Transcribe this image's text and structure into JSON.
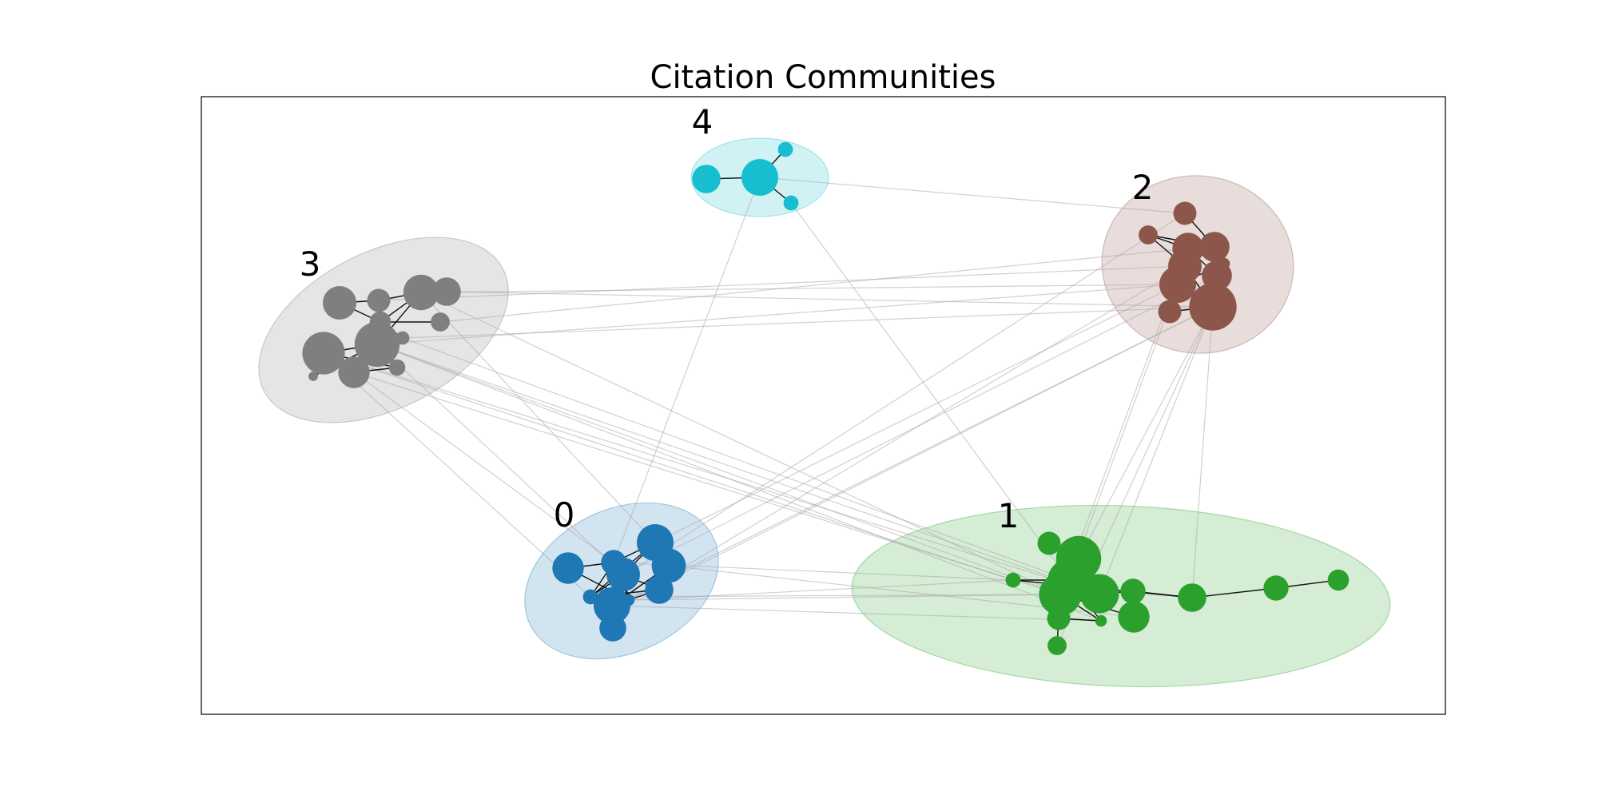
{
  "chart_data": {
    "type": "network",
    "title": "Citation Communities",
    "communities": [
      {
        "id": "0",
        "label": "0",
        "color": "#1f77b4",
        "nodes": [
          {
            "id": "c0n0",
            "size": 30
          },
          {
            "id": "c0n1",
            "size": 22
          },
          {
            "id": "c0n2",
            "size": 25
          },
          {
            "id": "c0n3",
            "size": 14
          },
          {
            "id": "c0n4",
            "size": 18
          },
          {
            "id": "c0n5",
            "size": 16
          },
          {
            "id": "c0n6",
            "size": 30
          },
          {
            "id": "c0n7",
            "size": 26
          },
          {
            "id": "c0n8",
            "size": 5
          },
          {
            "id": "c0n9",
            "size": 3
          }
        ],
        "edges": [
          [
            "c0n3",
            "c0n0"
          ],
          [
            "c0n3",
            "c0n2"
          ],
          [
            "c0n3",
            "c0n1"
          ],
          [
            "c0n3",
            "c0n8"
          ],
          [
            "c0n2",
            "c0n0"
          ],
          [
            "c0n2",
            "c0n4"
          ],
          [
            "c0n2",
            "c0n5"
          ],
          [
            "c0n2",
            "c0n8"
          ],
          [
            "c0n0",
            "c0n8"
          ],
          [
            "c0n8",
            "c0n4"
          ],
          [
            "c0n8",
            "c0n5"
          ],
          [
            "c0n1",
            "c0n9"
          ],
          [
            "c0n9",
            "c0n6"
          ],
          [
            "c0n9",
            "c0n5"
          ],
          [
            "c0n6",
            "c0n7"
          ],
          [
            "c0n6",
            "c0n4"
          ],
          [
            "c0n9",
            "c0n2"
          ],
          [
            "c0n9",
            "c0n3"
          ]
        ]
      },
      {
        "id": "1",
        "label": "1",
        "color": "#2ca02c",
        "nodes": [
          {
            "id": "c1n0",
            "size": 45
          },
          {
            "id": "c1n1",
            "size": 40
          },
          {
            "id": "c1n2",
            "size": 34
          },
          {
            "id": "c1n3",
            "size": 40
          },
          {
            "id": "c1n4",
            "size": 14
          },
          {
            "id": "c1n5",
            "size": 12
          },
          {
            "id": "c1n6",
            "size": 18
          },
          {
            "id": "c1n7",
            "size": 8
          },
          {
            "id": "c1n8",
            "size": 12
          },
          {
            "id": "c1n9",
            "size": 22
          },
          {
            "id": "c1n10",
            "size": 14
          },
          {
            "id": "c1n11",
            "size": 10
          },
          {
            "id": "c1n12",
            "size": 5
          },
          {
            "id": "c1n13",
            "size": 3
          }
        ],
        "edges": [
          [
            "c1n5",
            "c1n0"
          ],
          [
            "c1n0",
            "c1n1"
          ],
          [
            "c1n1",
            "c1n3"
          ],
          [
            "c1n3",
            "c1n2"
          ],
          [
            "c1n2",
            "c1n4"
          ],
          [
            "c1n4",
            "c1n6"
          ],
          [
            "c1n6",
            "c1n10"
          ],
          [
            "c1n10",
            "c1n11"
          ],
          [
            "c1n12",
            "c1n1"
          ],
          [
            "c1n12",
            "c1n6"
          ],
          [
            "c1n3",
            "c1n8"
          ],
          [
            "c1n8",
            "c1n7"
          ],
          [
            "c1n8",
            "c1n13"
          ],
          [
            "c1n13",
            "c1n3"
          ],
          [
            "c1n13",
            "c1n1"
          ],
          [
            "c1n3",
            "c1n9"
          ],
          [
            "c1n2",
            "c1n3"
          ],
          [
            "c1n0",
            "c1n2"
          ],
          [
            "c1n1",
            "c1n2"
          ]
        ]
      },
      {
        "id": "2",
        "label": "2",
        "color": "#8c564b",
        "nodes": [
          {
            "id": "c2n0",
            "size": 50
          },
          {
            "id": "c2n1",
            "size": 30
          },
          {
            "id": "c2n2",
            "size": 25
          },
          {
            "id": "c2n3",
            "size": 22
          },
          {
            "id": "c2n4",
            "size": 20
          },
          {
            "id": "c2n5",
            "size": 20
          },
          {
            "id": "c2n6",
            "size": 12
          },
          {
            "id": "c2n7",
            "size": 12
          },
          {
            "id": "c2n8",
            "size": 8
          },
          {
            "id": "c2n9",
            "size": 3
          }
        ],
        "edges": [
          [
            "c2n6",
            "c2n4"
          ],
          [
            "c2n8",
            "c2n4"
          ],
          [
            "c2n8",
            "c2n3"
          ],
          [
            "c2n8",
            "c2n2"
          ],
          [
            "c2n4",
            "c2n3"
          ],
          [
            "c2n3",
            "c2n2"
          ],
          [
            "c2n3",
            "c2n5"
          ],
          [
            "c2n2",
            "c2n0"
          ],
          [
            "c2n5",
            "c2n0"
          ],
          [
            "c2n5",
            "c2n9"
          ],
          [
            "c2n9",
            "c2n1"
          ],
          [
            "c2n2",
            "c2n7"
          ],
          [
            "c2n7",
            "c2n0"
          ],
          [
            "c2n3",
            "c2n9"
          ]
        ]
      },
      {
        "id": "3",
        "label": "3",
        "color": "#7f7f7f",
        "nodes": [
          {
            "id": "c3n0",
            "size": 45
          },
          {
            "id": "c3n1",
            "size": 40
          },
          {
            "id": "c3n2",
            "size": 28
          },
          {
            "id": "c3n3",
            "size": 25
          },
          {
            "id": "c3n4",
            "size": 22
          },
          {
            "id": "c3n5",
            "size": 18
          },
          {
            "id": "c3n6",
            "size": 12
          },
          {
            "id": "c3n7",
            "size": 10
          },
          {
            "id": "c3n8",
            "size": 8
          },
          {
            "id": "c3n9",
            "size": 6
          },
          {
            "id": "c3n10",
            "size": 4
          },
          {
            "id": "c3n11",
            "size": 2
          }
        ],
        "edges": [
          [
            "c3n3",
            "c3n6"
          ],
          [
            "c3n6",
            "c3n2"
          ],
          [
            "c3n2",
            "c3n5"
          ],
          [
            "c3n3",
            "c3n7"
          ],
          [
            "c3n7",
            "c3n0"
          ],
          [
            "c3n7",
            "c3n2"
          ],
          [
            "c3n7",
            "c3n8"
          ],
          [
            "c3n7",
            "c3n10"
          ],
          [
            "c3n0",
            "c3n1"
          ],
          [
            "c3n0",
            "c3n4"
          ],
          [
            "c3n1",
            "c3n4"
          ],
          [
            "c3n4",
            "c3n9"
          ],
          [
            "c3n9",
            "c3n1"
          ],
          [
            "c3n0",
            "c3n11"
          ],
          [
            "c3n0",
            "c3n2"
          ],
          [
            "c3n0",
            "c3n11"
          ]
        ]
      },
      {
        "id": "4",
        "label": "4",
        "color": "#17becf",
        "nodes": [
          {
            "id": "c4n0",
            "size": 30
          },
          {
            "id": "c4n1",
            "size": 18
          },
          {
            "id": "c4n2",
            "size": 5
          },
          {
            "id": "c4n3",
            "size": 5
          }
        ],
        "edges": [
          [
            "c4n1",
            "c4n0"
          ],
          [
            "c4n0",
            "c4n2"
          ],
          [
            "c4n0",
            "c4n3"
          ]
        ]
      }
    ],
    "inter_edges": [
      [
        "c4n0",
        "c0n3"
      ],
      [
        "c4n3",
        "c1n1"
      ],
      [
        "c4n0",
        "c2n6"
      ],
      [
        "c3n2",
        "c2n1"
      ],
      [
        "c3n5",
        "c2n0"
      ],
      [
        "c3n6",
        "c2n2"
      ],
      [
        "c3n10",
        "c2n0"
      ],
      [
        "c3n0",
        "c2n1"
      ],
      [
        "c3n8",
        "c2n3"
      ],
      [
        "c3n4",
        "c0n3"
      ],
      [
        "c3n0",
        "c0n2"
      ],
      [
        "c3n2",
        "c0n0"
      ],
      [
        "c3n1",
        "c0n8"
      ],
      [
        "c3n0",
        "c1n2"
      ],
      [
        "c3n0",
        "c1n3"
      ],
      [
        "c3n10",
        "c1n1"
      ],
      [
        "c3n4",
        "c1n3"
      ],
      [
        "c3n1",
        "c1n12"
      ],
      [
        "c3n2",
        "c1n3"
      ],
      [
        "c3n0",
        "c1n13"
      ],
      [
        "c3n1",
        "c1n2"
      ],
      [
        "c0n9",
        "c2n0"
      ],
      [
        "c0n9",
        "c2n2"
      ],
      [
        "c0n0",
        "c2n1"
      ],
      [
        "c0n8",
        "c2n6"
      ],
      [
        "c0n6",
        "c2n0"
      ],
      [
        "c0n2",
        "c2n5"
      ],
      [
        "c0n9",
        "c1n12"
      ],
      [
        "c0n9",
        "c1n3"
      ],
      [
        "c0n3",
        "c1n12"
      ],
      [
        "c0n8",
        "c1n3"
      ],
      [
        "c0n6",
        "c1n13"
      ],
      [
        "c0n7",
        "c1n9"
      ],
      [
        "c2n0",
        "c1n0"
      ],
      [
        "c2n0",
        "c1n2"
      ],
      [
        "c2n1",
        "c1n1"
      ],
      [
        "c2n0",
        "c1n6"
      ],
      [
        "c2n3",
        "c1n3"
      ],
      [
        "c2n0",
        "c1n7"
      ]
    ]
  }
}
